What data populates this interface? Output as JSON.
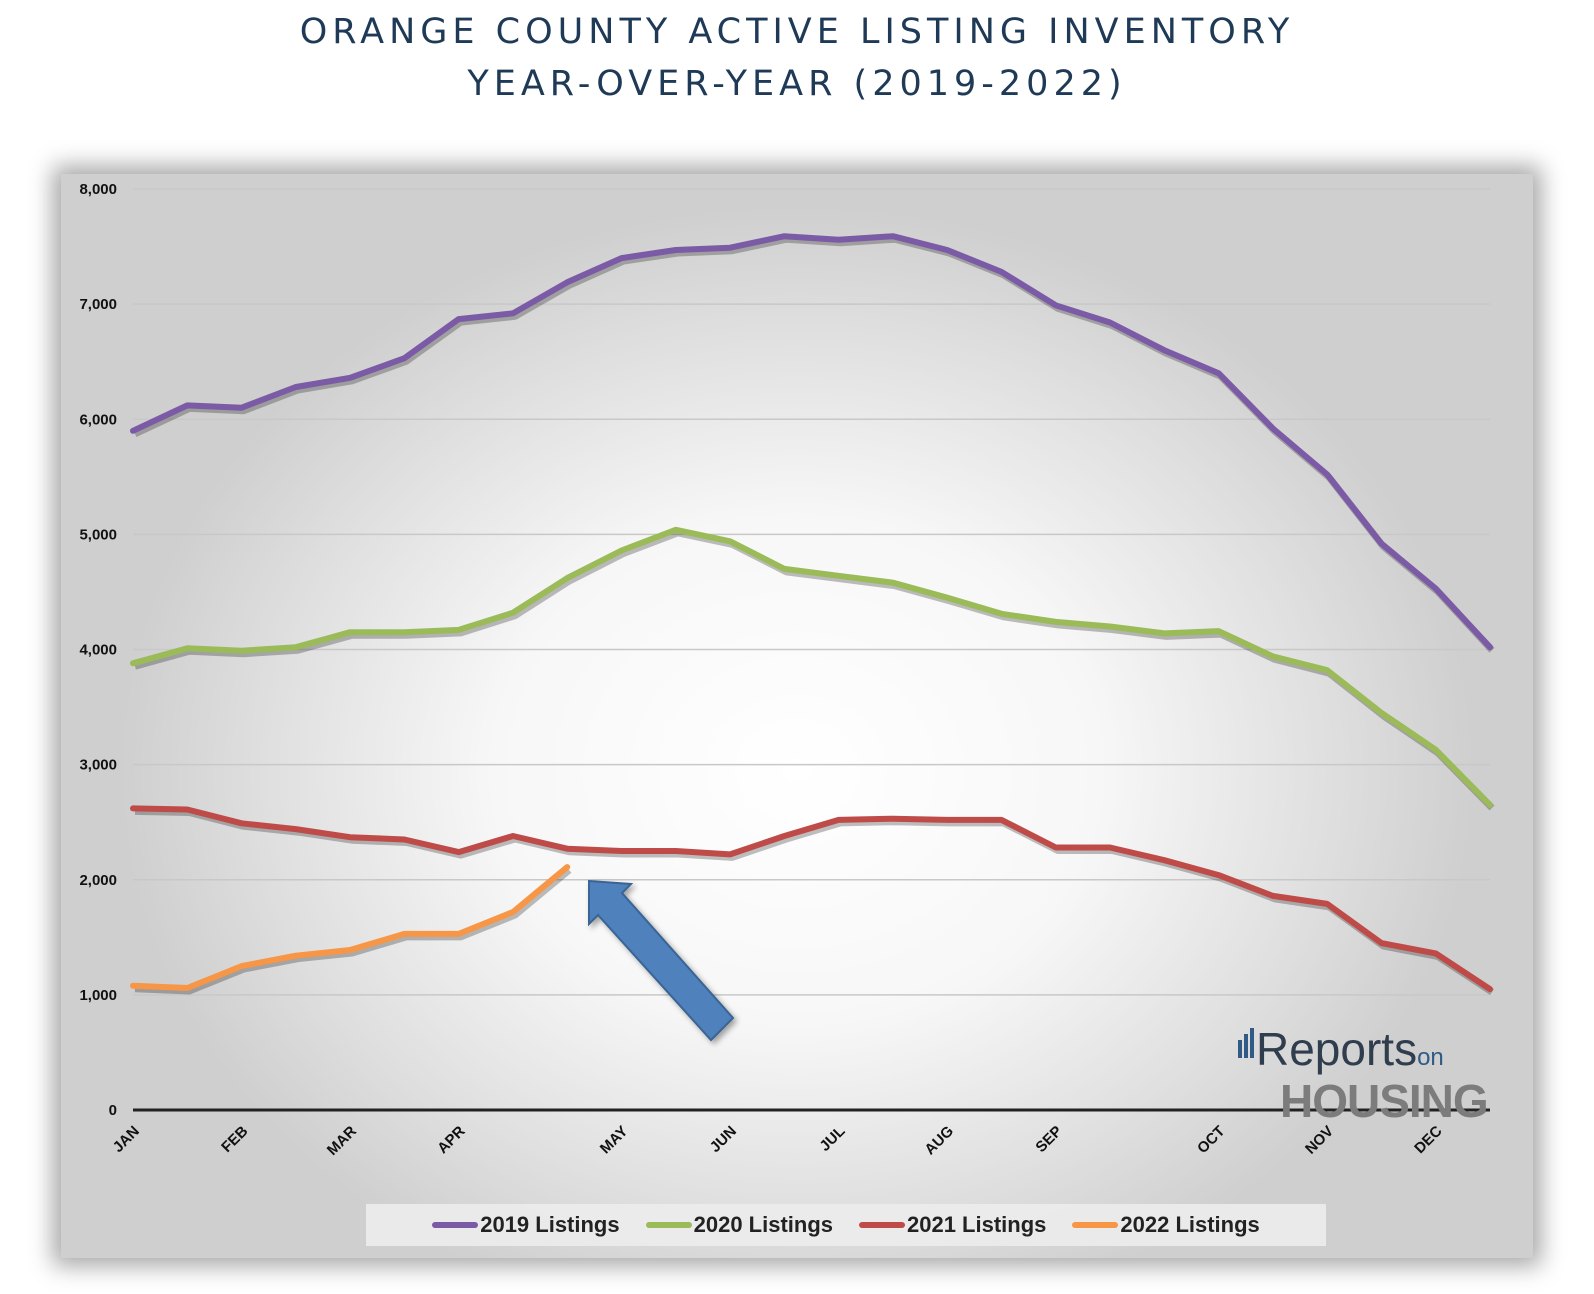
{
  "header": {
    "title_line1": "ORANGE COUNTY ACTIVE LISTING INVENTORY",
    "title_line2": "YEAR-OVER-YEAR (2019-2022)"
  },
  "logo": {
    "text_part1": "Reports",
    "text_small": "on",
    "text_part2": "HOUSING"
  },
  "chart_data": {
    "type": "line",
    "title": "ORANGE COUNTY ACTIVE LISTING INVENTORY YEAR-OVER-YEAR (2019-2022)",
    "xlabel": "",
    "ylabel": "",
    "ylim": [
      0,
      8000
    ],
    "y_ticks": [
      0,
      1000,
      2000,
      3000,
      4000,
      5000,
      6000,
      7000,
      8000
    ],
    "y_tick_labels": [
      "0",
      "1,000",
      "2,000",
      "3,000",
      "4,000",
      "5,000",
      "6,000",
      "7,000",
      "8,000"
    ],
    "x_range": [
      0,
      25
    ],
    "month_ticks": [
      {
        "label": "JAN",
        "pos": 0
      },
      {
        "label": "FEB",
        "pos": 2
      },
      {
        "label": "MAR",
        "pos": 4
      },
      {
        "label": "APR",
        "pos": 6
      },
      {
        "label": "MAY",
        "pos": 9
      },
      {
        "label": "JUN",
        "pos": 11
      },
      {
        "label": "JUL",
        "pos": 13
      },
      {
        "label": "AUG",
        "pos": 15
      },
      {
        "label": "SEP",
        "pos": 17
      },
      {
        "label": "OCT",
        "pos": 20
      },
      {
        "label": "NOV",
        "pos": 22
      },
      {
        "label": "DEC",
        "pos": 24
      }
    ],
    "grid": true,
    "legend_position": "bottom",
    "series": [
      {
        "name": "2019 Listings",
        "color": "#7b5aa6",
        "values": [
          5900,
          6120,
          6100,
          6280,
          6360,
          6530,
          6870,
          6920,
          7190,
          7400,
          7470,
          7490,
          7590,
          7560,
          7590,
          7470,
          7280,
          6990,
          6840,
          6600,
          6400,
          5920,
          5520,
          4920,
          4530,
          4020
        ]
      },
      {
        "name": "2020 Listings",
        "color": "#9bbb59",
        "values": [
          3880,
          4010,
          3990,
          4020,
          4150,
          4150,
          4170,
          4320,
          4620,
          4860,
          5040,
          4940,
          4700,
          4640,
          4580,
          4450,
          4310,
          4240,
          4200,
          4140,
          4160,
          3940,
          3820,
          3450,
          3130,
          2650
        ]
      },
      {
        "name": "2021 Listings",
        "color": "#be4b48",
        "values": [
          2620,
          2610,
          2490,
          2440,
          2370,
          2350,
          2240,
          2380,
          2270,
          2250,
          2250,
          2220,
          2380,
          2520,
          2530,
          2520,
          2520,
          2280,
          2280,
          2170,
          2040,
          1860,
          1790,
          1450,
          1360,
          1050
        ]
      },
      {
        "name": "2022 Listings",
        "color": "#f79646",
        "values": [
          1080,
          1060,
          1250,
          1340,
          1390,
          1530,
          1530,
          1720,
          2110
        ]
      }
    ],
    "annotations": [
      {
        "type": "arrow",
        "color": "#4f81bd",
        "points_to": "end of 2022 Listings series"
      }
    ]
  }
}
